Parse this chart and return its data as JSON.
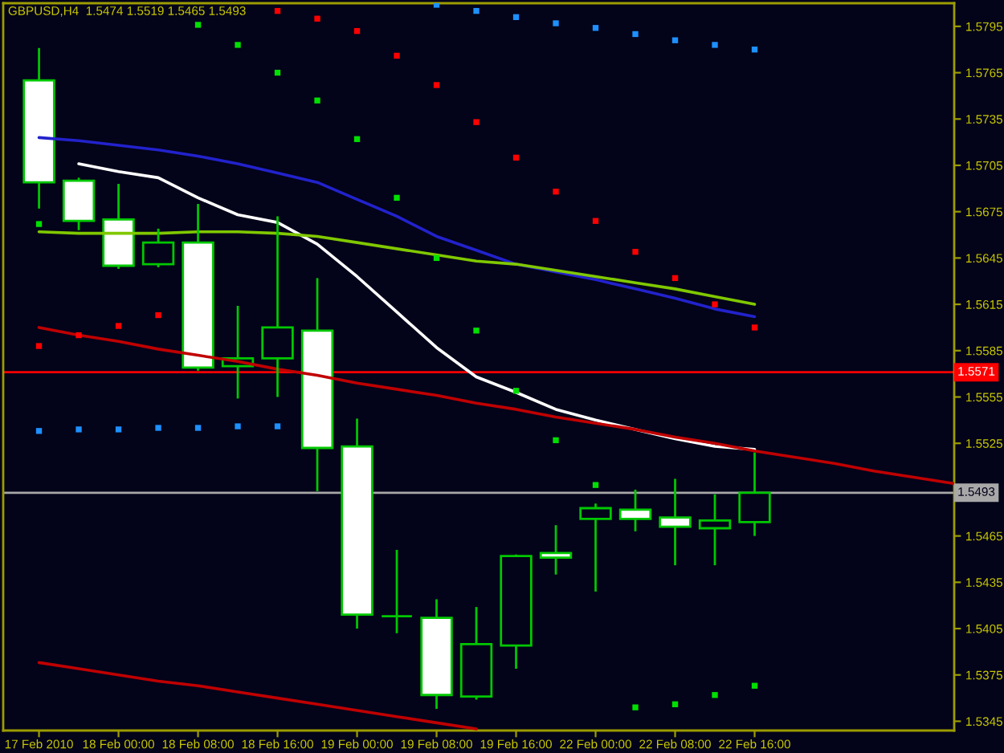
{
  "chart_data": {
    "type": "candlestick",
    "title": "GBPUSD,H4  1.5474 1.5519 1.5465 1.5493",
    "categories": [
      "17 Feb 2010",
      null,
      "18 Feb 00:00",
      null,
      "18 Feb 08:00",
      null,
      "18 Feb 16:00",
      null,
      "19 Feb 00:00",
      null,
      "19 Feb 08:00",
      null,
      "19 Feb 16:00",
      null,
      "22 Feb 00:00",
      null,
      "22 Feb 08:00",
      null,
      "22 Feb 16:00",
      null,
      null,
      null,
      null,
      null
    ],
    "ohlc": [
      [
        1.576,
        1.5781,
        1.5677,
        1.5694
      ],
      [
        1.5695,
        1.5697,
        1.5663,
        1.5669
      ],
      [
        1.567,
        1.5693,
        1.5638,
        1.564
      ],
      [
        1.5641,
        1.5664,
        1.5639,
        1.5655
      ],
      [
        1.5655,
        1.568,
        1.5572,
        1.5574
      ],
      [
        1.5575,
        1.5614,
        1.5554,
        1.558
      ],
      [
        1.558,
        1.5672,
        1.5555,
        1.56
      ],
      [
        1.5598,
        1.5632,
        1.5494,
        1.5522
      ],
      [
        1.5523,
        1.5541,
        1.5405,
        1.5414
      ],
      [
        1.5413,
        1.5456,
        1.5402,
        1.5413
      ],
      [
        1.5412,
        1.5424,
        1.5353,
        1.5362
      ],
      [
        1.5361,
        1.5419,
        1.5359,
        1.5395
      ],
      [
        1.5394,
        1.5453,
        1.5379,
        1.5452
      ],
      [
        1.5454,
        1.5472,
        1.544,
        1.5451
      ],
      [
        1.5476,
        1.5486,
        1.5429,
        1.5483
      ],
      [
        1.5482,
        1.5495,
        1.5468,
        1.5476
      ],
      [
        1.5477,
        1.5502,
        1.5446,
        1.5471
      ],
      [
        1.547,
        1.5492,
        1.5446,
        1.5475
      ],
      [
        1.5474,
        1.5519,
        1.5465,
        1.5493
      ],
      null,
      null,
      null,
      null,
      null
    ],
    "color": "#00c800",
    "colors": [
      "#ffffff",
      "#ffffff",
      "#ffffff",
      "#03031a",
      "#ffffff",
      "#03031a",
      "#03031a",
      "#ffffff",
      "#ffffff",
      "#00c800",
      "#ffffff",
      "#03031a",
      "#03031a",
      "#ffffff",
      "#03031a",
      "#ffffff",
      "#ffffff",
      "#03031a",
      "#03031a",
      null,
      null,
      null,
      null,
      null
    ],
    "series": [
      {
        "type": "line",
        "color": "#ffffff",
        "values": [
          null,
          1.5706,
          1.5701,
          1.5697,
          1.5684,
          1.5673,
          1.5668,
          1.5654,
          1.5633,
          1.561,
          1.5587,
          1.5568,
          1.5558,
          1.5547,
          1.554,
          1.5534,
          1.5528,
          1.5523,
          1.5521,
          null,
          null,
          null,
          null,
          null
        ]
      },
      {
        "type": "line",
        "color": "#2222cc",
        "values": [
          1.5723,
          1.5721,
          1.5718,
          1.5715,
          1.5711,
          1.5706,
          1.57,
          1.5694,
          1.5683,
          1.5672,
          1.5659,
          1.565,
          1.5641,
          1.5636,
          1.5631,
          1.5625,
          1.5619,
          1.5612,
          1.5607,
          null,
          null,
          null,
          null,
          null
        ]
      },
      {
        "type": "line",
        "color": "#80c800",
        "values": [
          1.5662,
          1.5661,
          1.5661,
          1.5661,
          1.5662,
          1.5662,
          1.5661,
          1.5659,
          1.5655,
          1.5651,
          1.5647,
          1.5643,
          1.5641,
          1.5637,
          1.5633,
          1.5629,
          1.5625,
          1.562,
          1.5615,
          null,
          null,
          null,
          null,
          null
        ]
      },
      {
        "type": "line",
        "color": "#c00000",
        "values": [
          1.56,
          1.5595,
          1.5591,
          1.5586,
          1.5582,
          1.5578,
          1.5573,
          1.5569,
          1.5564,
          1.556,
          1.5556,
          1.5551,
          1.5547,
          1.5542,
          1.5538,
          1.5534,
          1.5529,
          1.5525,
          1.552,
          1.5516,
          1.5512,
          1.5507,
          1.5503,
          1.5499
        ]
      },
      {
        "type": "line",
        "color": "#c00000",
        "values": [
          1.5383,
          1.5379,
          1.5375,
          1.5371,
          1.5368,
          1.5364,
          1.536,
          1.5356,
          1.5352,
          1.5348,
          1.5344,
          1.534,
          null,
          null,
          null,
          null,
          null,
          null,
          null,
          null,
          null,
          null,
          null,
          null
        ]
      },
      {
        "type": "scatter",
        "marker": "square",
        "color": "#ff0000",
        "values": [
          1.5588,
          1.5595,
          1.5601,
          1.5608,
          null,
          null,
          1.5805,
          1.58,
          1.5792,
          1.5776,
          1.5757,
          1.5733,
          1.571,
          1.5688,
          1.5669,
          1.5649,
          1.5632,
          1.5615,
          1.56,
          null,
          null,
          null,
          null,
          null
        ]
      },
      {
        "type": "scatter",
        "marker": "square",
        "color": "#00e000",
        "values": [
          1.5667,
          null,
          null,
          null,
          1.5796,
          1.5783,
          1.5765,
          1.5747,
          1.5722,
          1.5684,
          1.5645,
          1.5598,
          1.5559,
          1.5527,
          1.5498,
          1.5354,
          1.5356,
          1.5362,
          1.5368,
          null,
          null,
          null,
          null,
          null
        ]
      },
      {
        "type": "scatter",
        "marker": "square",
        "color": "#1e90ff",
        "values": [
          1.5533,
          1.5534,
          1.5534,
          1.5535,
          1.5535,
          1.5536,
          1.5536,
          null,
          null,
          null,
          1.5809,
          1.5805,
          1.5801,
          1.5797,
          1.5794,
          1.579,
          1.5786,
          1.5783,
          1.578,
          null,
          null,
          null,
          null,
          null
        ]
      }
    ],
    "ylim": [
      1.5339,
      1.581
    ],
    "yticks": [
      1.5345,
      1.5375,
      1.5405,
      1.5435,
      1.5465,
      1.5525,
      1.5555,
      1.5585,
      1.5615,
      1.5645,
      1.5675,
      1.5705,
      1.5735,
      1.5765,
      1.5795
    ],
    "ref_lines": [
      {
        "axis": "y",
        "value": 1.5571,
        "label": "1.5571",
        "color": "#ff0000"
      },
      {
        "axis": "y",
        "value": 1.5493,
        "label": "1.5493",
        "color": "#a8a8a8"
      }
    ]
  }
}
